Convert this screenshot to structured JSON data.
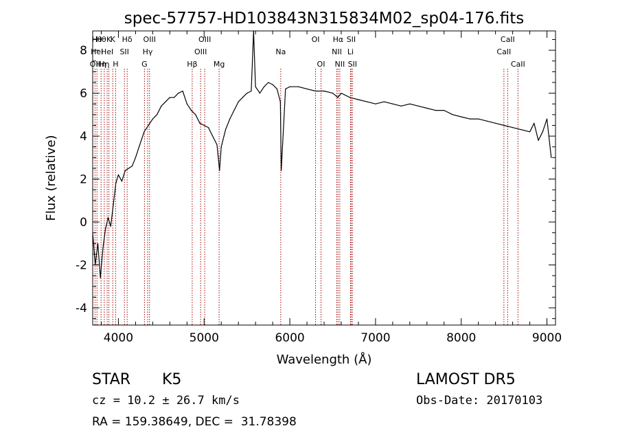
{
  "chart_data": {
    "type": "line",
    "title": "spec-57757-HD103843N315834M02_sp04-176.fits",
    "xlabel": "Wavelength (Å)",
    "ylabel": "Flux (relative)",
    "xlim": [
      3700,
      9100
    ],
    "ylim": [
      -4.8,
      8.9
    ],
    "xticks": [
      4000,
      5000,
      6000,
      7000,
      8000,
      9000
    ],
    "yticks": [
      -4,
      -2,
      0,
      2,
      4,
      6,
      8
    ],
    "line_color": "#000000",
    "marker_color": "#a40000",
    "series": [
      {
        "x": [
          3700,
          3730,
          3760,
          3790,
          3820,
          3850,
          3880,
          3910,
          3940,
          3970,
          4000,
          4040,
          4080,
          4120,
          4160,
          4200,
          4250,
          4300,
          4350,
          4400,
          4450,
          4500,
          4550,
          4600,
          4650,
          4700,
          4750,
          4800,
          4850,
          4900,
          4950,
          5000,
          5050,
          5100,
          5150,
          5180,
          5200,
          5250,
          5300,
          5350,
          5400,
          5450,
          5500,
          5550,
          5577,
          5600,
          5650,
          5700,
          5750,
          5800,
          5850,
          5890,
          5900,
          5950,
          6000,
          6100,
          6200,
          6300,
          6400,
          6500,
          6560,
          6600,
          6700,
          6800,
          6900,
          7000,
          7100,
          7200,
          7300,
          7400,
          7500,
          7600,
          7700,
          7800,
          7900,
          8000,
          8100,
          8200,
          8300,
          8400,
          8500,
          8600,
          8700,
          8800,
          8850,
          8900,
          8950,
          9000,
          9050
        ],
        "y": [
          -0.5,
          -2.0,
          -1.0,
          -2.6,
          -1.2,
          -0.3,
          0.2,
          -0.2,
          0.8,
          1.8,
          2.2,
          1.9,
          2.4,
          2.5,
          2.6,
          3.0,
          3.6,
          4.2,
          4.5,
          4.8,
          5.0,
          5.4,
          5.6,
          5.8,
          5.8,
          6.0,
          6.1,
          5.5,
          5.2,
          5.0,
          4.6,
          4.5,
          4.4,
          4.0,
          3.6,
          2.4,
          3.5,
          4.3,
          4.8,
          5.2,
          5.6,
          5.8,
          6.0,
          6.1,
          8.9,
          6.3,
          6.0,
          6.3,
          6.5,
          6.4,
          6.2,
          5.6,
          2.4,
          6.2,
          6.3,
          6.3,
          6.2,
          6.1,
          6.1,
          6.0,
          5.8,
          6.0,
          5.8,
          5.7,
          5.6,
          5.5,
          5.6,
          5.5,
          5.4,
          5.5,
          5.4,
          5.3,
          5.2,
          5.2,
          5.0,
          4.9,
          4.8,
          4.8,
          4.7,
          4.6,
          4.5,
          4.4,
          4.3,
          4.2,
          4.6,
          3.8,
          4.2,
          4.8,
          3.0
        ]
      }
    ],
    "lines": [
      {
        "x": 3727,
        "labels": [
          "OII"
        ],
        "rows": [
          2
        ]
      },
      {
        "x": 3750,
        "labels": [
          "Hθ",
          "HeI"
        ],
        "rows": [
          0,
          1
        ]
      },
      {
        "x": 3798,
        "labels": [
          "Hθ",
          "Hη"
        ],
        "rows": [
          0,
          2
        ]
      },
      {
        "x": 3835,
        "labels": [
          "Hη"
        ],
        "rows": [
          2
        ]
      },
      {
        "x": 3869,
        "labels": [
          "HeI"
        ],
        "rows": [
          1
        ]
      },
      {
        "x": 3889,
        "labels": [
          "K"
        ],
        "rows": [
          0
        ]
      },
      {
        "x": 3934,
        "labels": [
          "K"
        ],
        "rows": [
          0
        ]
      },
      {
        "x": 3968,
        "labels": [
          "H"
        ],
        "rows": [
          2
        ]
      },
      {
        "x": 4070,
        "labels": [
          "SII"
        ],
        "rows": [
          1
        ]
      },
      {
        "x": 4102,
        "labels": [
          "Hδ"
        ],
        "rows": [
          0
        ]
      },
      {
        "x": 4304,
        "labels": [
          "G"
        ],
        "rows": [
          2
        ]
      },
      {
        "x": 4341,
        "labels": [
          "Hγ"
        ],
        "rows": [
          1
        ]
      },
      {
        "x": 4363,
        "labels": [
          "OIII"
        ],
        "rows": [
          0
        ]
      },
      {
        "x": 4861,
        "labels": [
          "Hβ"
        ],
        "rows": [
          2
        ]
      },
      {
        "x": 4959,
        "labels": [
          "OIII"
        ],
        "rows": [
          1
        ]
      },
      {
        "x": 5007,
        "labels": [
          "OIII"
        ],
        "rows": [
          0
        ]
      },
      {
        "x": 5175,
        "labels": [
          "Mg"
        ],
        "rows": [
          2
        ]
      },
      {
        "x": 5894,
        "labels": [
          "Na"
        ],
        "rows": [
          1
        ]
      },
      {
        "x": 6300,
        "labels": [
          "OI"
        ],
        "rows": [
          0
        ]
      },
      {
        "x": 6364,
        "labels": [
          "OI"
        ],
        "rows": [
          2
        ]
      },
      {
        "x": 6548,
        "labels": [
          "NII"
        ],
        "rows": [
          1
        ]
      },
      {
        "x": 6563,
        "labels": [
          "Hα"
        ],
        "rows": [
          0
        ]
      },
      {
        "x": 6583,
        "labels": [
          "NII"
        ],
        "rows": [
          2
        ]
      },
      {
        "x": 6708,
        "labels": [
          "Li"
        ],
        "rows": [
          1
        ]
      },
      {
        "x": 6716,
        "labels": [
          "SII"
        ],
        "rows": [
          0
        ]
      },
      {
        "x": 6731,
        "labels": [
          "SII"
        ],
        "rows": [
          2
        ]
      },
      {
        "x": 8498,
        "labels": [
          "CaII"
        ],
        "rows": [
          1
        ]
      },
      {
        "x": 8542,
        "labels": [
          "CaII"
        ],
        "rows": [
          0
        ]
      },
      {
        "x": 8662,
        "labels": [
          "CaII"
        ],
        "rows": [
          2
        ]
      }
    ]
  },
  "info": {
    "class": "STAR",
    "subclass": "K5",
    "survey": "LAMOST DR5",
    "cz": "cz = 10.2 ± 26.7 km/s",
    "obs_date": "Obs-Date: 20170103",
    "radec": "RA = 159.38649, DEC =  31.78398"
  }
}
